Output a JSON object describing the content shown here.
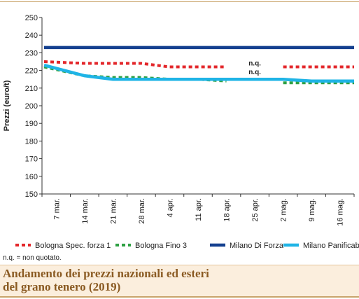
{
  "chart_data": {
    "type": "line",
    "ylabel": "Prezzi (euro/t)",
    "xlabel": "",
    "categories": [
      "7 mar.",
      "14 mar.",
      "21 mar.",
      "28 mar.",
      "4 apr.",
      "11 apr.",
      "18 apr.",
      "25 apr.",
      "2 mag.",
      "9 mag.",
      "16 mag."
    ],
    "yticks": [
      150,
      160,
      170,
      180,
      190,
      200,
      210,
      220,
      230,
      240,
      250
    ],
    "ylim": [
      150,
      250
    ],
    "grid": false,
    "legend_position": "bottom",
    "series": [
      {
        "name": "Bologna Spec. forza 1",
        "color": "#e3262a",
        "style": "dotted",
        "values": [
          225,
          224,
          224,
          224,
          222,
          222,
          222,
          null,
          222,
          222,
          222
        ]
      },
      {
        "name": "Bologna Fino 3",
        "color": "#2ea043",
        "style": "dotted",
        "values": [
          222,
          217,
          216,
          216,
          215,
          215,
          214,
          null,
          213,
          213,
          213
        ]
      },
      {
        "name": "Milano Di Forza",
        "color": "#14408f",
        "style": "solid",
        "values": [
          233,
          233,
          233,
          233,
          233,
          233,
          233,
          233,
          233,
          233,
          233
        ]
      },
      {
        "name": "Milano Panificabile",
        "color": "#1fb4e6",
        "style": "solid",
        "values": [
          223,
          217,
          215,
          215,
          215,
          215,
          215,
          215,
          215,
          214,
          214
        ]
      }
    ],
    "annotations": [
      {
        "text": "n.q.",
        "x": "25 apr.",
        "y": 222
      },
      {
        "text": "n.q.",
        "x": "25 apr.",
        "y": 217
      }
    ]
  },
  "note": "n.q. = non quotato.",
  "caption": "Andamento dei prezzi nazionali ed esteri\ndel grano tenero (2019)"
}
